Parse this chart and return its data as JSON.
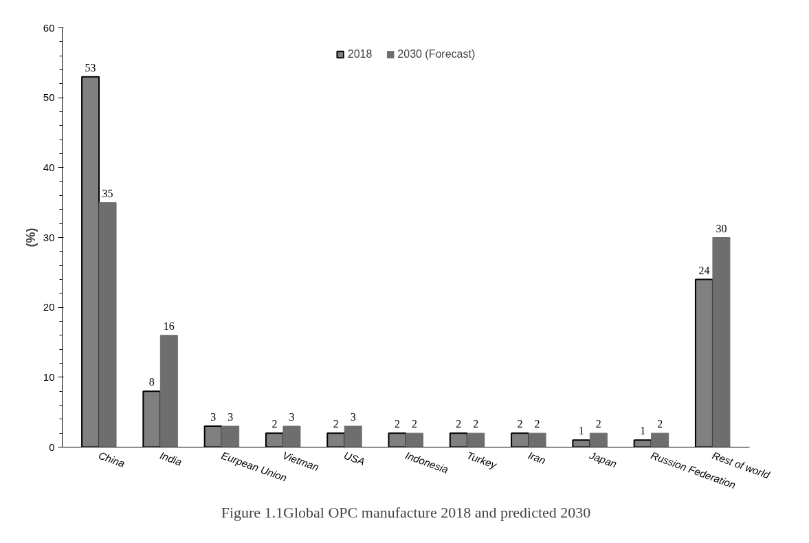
{
  "chart_data": {
    "type": "bar",
    "ylabel": "(%)",
    "categories": [
      "China",
      "India",
      "Eurpean Union",
      "Vietman",
      "USA",
      "Indonesia",
      "Turkey",
      "Iran",
      "Japan",
      "Russion Federation",
      "Rest of world"
    ],
    "series": [
      {
        "name": "2018",
        "color": "#808080",
        "values": [
          53,
          8,
          3,
          2,
          2,
          2,
          2,
          2,
          1,
          1,
          24
        ]
      },
      {
        "name": "2030 (Forecast)",
        "color": "#6e6e6e",
        "values": [
          35,
          16,
          3,
          3,
          3,
          2,
          2,
          2,
          2,
          2,
          30
        ]
      }
    ],
    "ylim": [
      0,
      60
    ],
    "yticks": [
      0,
      10,
      20,
      30,
      40,
      50,
      60
    ],
    "data_labels": true,
    "grid": false,
    "legend": "top",
    "annotations": [
      "Figure 1.1Global OPC manufacture 2018 and predicted 2030"
    ]
  }
}
